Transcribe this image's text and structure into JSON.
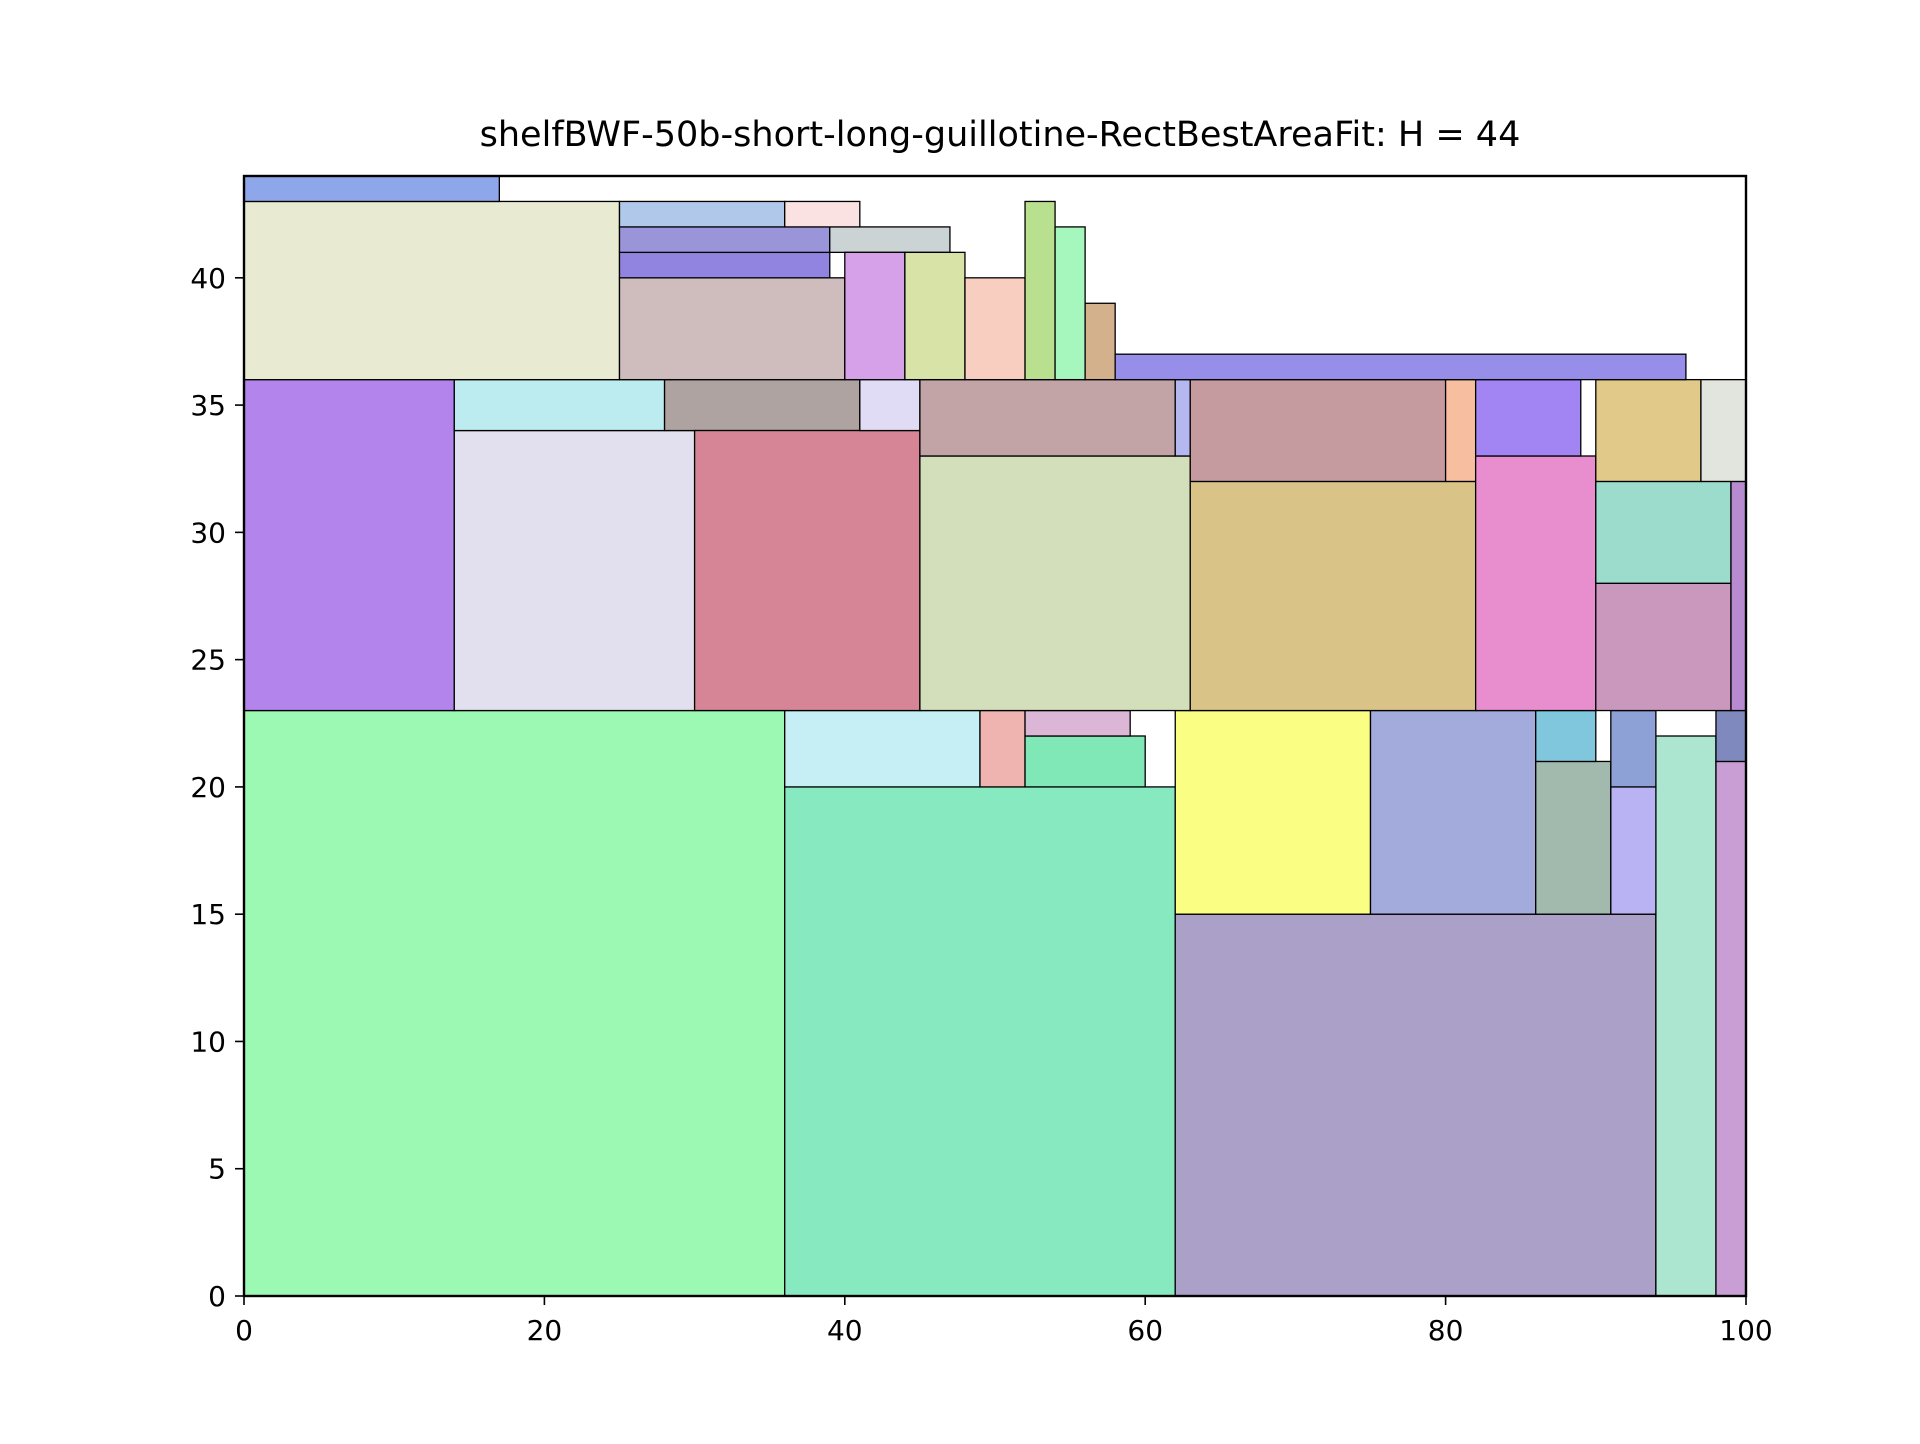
{
  "chart_data": {
    "type": "rectangle-packing",
    "title": "shelfBWF-50b-short-long-guillotine-RectBestAreaFit: H = 44",
    "xlabel": "",
    "ylabel": "",
    "xlim": [
      0,
      100
    ],
    "ylim": [
      0,
      44
    ],
    "xticks": [
      0,
      20,
      40,
      60,
      80,
      100
    ],
    "yticks": [
      0,
      5,
      10,
      15,
      20,
      25,
      30,
      35,
      40
    ],
    "grid": false,
    "rects": [
      {
        "x": 0,
        "y": 0,
        "w": 36,
        "h": 23,
        "color": "#9cf9b4"
      },
      {
        "x": 36,
        "y": 0,
        "w": 26,
        "h": 20,
        "color": "#86e9c0"
      },
      {
        "x": 62,
        "y": 0,
        "w": 32,
        "h": 15,
        "color": "#aba0c8"
      },
      {
        "x": 94,
        "y": 0,
        "w": 4,
        "h": 22,
        "color": "#ace5d0"
      },
      {
        "x": 98,
        "y": 0,
        "w": 2,
        "h": 21,
        "color": "#c99ed5"
      },
      {
        "x": 36,
        "y": 20,
        "w": 13,
        "h": 3,
        "color": "#c5eef5"
      },
      {
        "x": 49,
        "y": 20,
        "w": 3,
        "h": 3,
        "color": "#efb4b0"
      },
      {
        "x": 52,
        "y": 20,
        "w": 8,
        "h": 2,
        "color": "#7fe8b6"
      },
      {
        "x": 52,
        "y": 22,
        "w": 7,
        "h": 1,
        "color": "#dcb6d6"
      },
      {
        "x": 62,
        "y": 15,
        "w": 13,
        "h": 8,
        "color": "#fafe83"
      },
      {
        "x": 75,
        "y": 15,
        "w": 11,
        "h": 8,
        "color": "#a2abdc"
      },
      {
        "x": 86,
        "y": 15,
        "w": 5,
        "h": 6,
        "color": "#a2b9ae"
      },
      {
        "x": 86,
        "y": 21,
        "w": 4,
        "h": 2,
        "color": "#80c6dc"
      },
      {
        "x": 91,
        "y": 15,
        "w": 3,
        "h": 5,
        "color": "#b9b3f4"
      },
      {
        "x": 91,
        "y": 20,
        "w": 3,
        "h": 3,
        "color": "#8ea1d6"
      },
      {
        "x": 98,
        "y": 21,
        "w": 2,
        "h": 2,
        "color": "#8089bd"
      },
      {
        "x": 0,
        "y": 23,
        "w": 14,
        "h": 13,
        "color": "#b385ec"
      },
      {
        "x": 14,
        "y": 23,
        "w": 16,
        "h": 11,
        "color": "#e2e0ee"
      },
      {
        "x": 14,
        "y": 34,
        "w": 14,
        "h": 2,
        "color": "#bcecef"
      },
      {
        "x": 28,
        "y": 34,
        "w": 13,
        "h": 2,
        "color": "#aea3a0"
      },
      {
        "x": 30,
        "y": 23,
        "w": 15,
        "h": 11,
        "color": "#d58596"
      },
      {
        "x": 41,
        "y": 34,
        "w": 4,
        "h": 2,
        "color": "#e0dcf6"
      },
      {
        "x": 45,
        "y": 23,
        "w": 18,
        "h": 10,
        "color": "#d2dfba"
      },
      {
        "x": 45,
        "y": 33,
        "w": 17,
        "h": 3,
        "color": "#c2a3a6"
      },
      {
        "x": 62,
        "y": 33,
        "w": 1,
        "h": 3,
        "color": "#b4b8ee"
      },
      {
        "x": 63,
        "y": 23,
        "w": 19,
        "h": 9,
        "color": "#d9c386"
      },
      {
        "x": 63,
        "y": 32,
        "w": 17,
        "h": 4,
        "color": "#c59b9f"
      },
      {
        "x": 80,
        "y": 32,
        "w": 2,
        "h": 4,
        "color": "#f8bea0"
      },
      {
        "x": 82,
        "y": 23,
        "w": 8,
        "h": 10,
        "color": "#e88ecf"
      },
      {
        "x": 82,
        "y": 33,
        "w": 7,
        "h": 3,
        "color": "#a285f2"
      },
      {
        "x": 90,
        "y": 23,
        "w": 9,
        "h": 5,
        "color": "#c998bc"
      },
      {
        "x": 90,
        "y": 28,
        "w": 9,
        "h": 4,
        "color": "#9cdccc"
      },
      {
        "x": 99,
        "y": 23,
        "w": 1,
        "h": 9,
        "color": "#b88bd0"
      },
      {
        "x": 90,
        "y": 32,
        "w": 7,
        "h": 4,
        "color": "#e1ca89"
      },
      {
        "x": 97,
        "y": 32,
        "w": 3,
        "h": 4,
        "color": "#e2e4de"
      },
      {
        "x": 0,
        "y": 36,
        "w": 25,
        "h": 7,
        "color": "#e9ead2"
      },
      {
        "x": 0,
        "y": 43,
        "w": 17,
        "h": 1,
        "color": "#8ea6ea"
      },
      {
        "x": 25,
        "y": 36,
        "w": 15,
        "h": 4,
        "color": "#cfbdbd"
      },
      {
        "x": 25,
        "y": 40,
        "w": 14,
        "h": 1,
        "color": "#9184e0"
      },
      {
        "x": 25,
        "y": 41,
        "w": 14,
        "h": 1,
        "color": "#9a95d9"
      },
      {
        "x": 39,
        "y": 41,
        "w": 8,
        "h": 1,
        "color": "#cbd3d4"
      },
      {
        "x": 25,
        "y": 42,
        "w": 11,
        "h": 1,
        "color": "#b0c9ea"
      },
      {
        "x": 36,
        "y": 42,
        "w": 5,
        "h": 1,
        "color": "#fbe2e2"
      },
      {
        "x": 40,
        "y": 36,
        "w": 4,
        "h": 5,
        "color": "#d6a1e8"
      },
      {
        "x": 44,
        "y": 36,
        "w": 4,
        "h": 5,
        "color": "#d8e3a8"
      },
      {
        "x": 48,
        "y": 36,
        "w": 4,
        "h": 4,
        "color": "#f8cec1"
      },
      {
        "x": 52,
        "y": 36,
        "w": 2,
        "h": 7,
        "color": "#b9e08e"
      },
      {
        "x": 54,
        "y": 36,
        "w": 2,
        "h": 6,
        "color": "#a6f7bd"
      },
      {
        "x": 56,
        "y": 36,
        "w": 2,
        "h": 3,
        "color": "#d3b18c"
      },
      {
        "x": 58,
        "y": 36,
        "w": 38,
        "h": 1,
        "color": "#968ee9"
      }
    ]
  }
}
